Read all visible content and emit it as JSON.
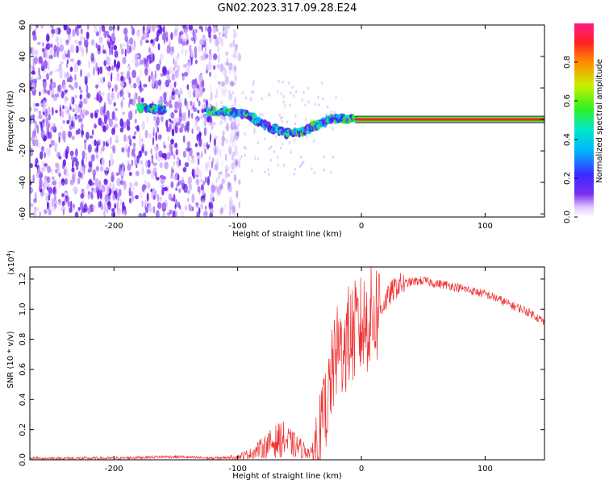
{
  "title": "GN02.2023.317.09.28.E24",
  "chart_data": [
    {
      "type": "heatmap",
      "xlabel": "Height of straight line (km)",
      "ylabel": "Frequency (Hz)",
      "xlim": [
        -268,
        148
      ],
      "ylim": [
        -62,
        60
      ],
      "xticks": [
        -200,
        -100,
        0,
        100
      ],
      "yticks": [
        -60,
        -40,
        -20,
        0,
        20,
        40,
        60
      ],
      "colorbar": {
        "label": "Normalized spectral amplitude",
        "range": [
          0,
          1
        ],
        "ticks": [
          "0.0",
          "0.2",
          "0.4",
          "0.6",
          "0.8"
        ],
        "colors": [
          "#ffffff",
          "#e0c8ff",
          "#7a2cf0",
          "#3a2cff",
          "#00b4ff",
          "#00e8c8",
          "#30f020",
          "#c8f000",
          "#ff8c00",
          "#ff2020",
          "#ff1a8c"
        ]
      },
      "features": {
        "noise_region_x": [
          -268,
          -105
        ],
        "carrier_line_x": [
          -5,
          148
        ],
        "carrier_freq_hz": 0,
        "signal_track": [
          {
            "x": -180,
            "y": 7
          },
          {
            "x": -170,
            "y": 7
          },
          {
            "x": -160,
            "y": 6
          },
          {
            "x": -125,
            "y": 5
          },
          {
            "x": -110,
            "y": 5
          },
          {
            "x": -100,
            "y": 4
          },
          {
            "x": -90,
            "y": 2
          },
          {
            "x": -80,
            "y": -3
          },
          {
            "x": -70,
            "y": -6
          },
          {
            "x": -60,
            "y": -9
          },
          {
            "x": -50,
            "y": -8
          },
          {
            "x": -42,
            "y": -6
          },
          {
            "x": -35,
            "y": -3
          },
          {
            "x": -25,
            "y": 0
          },
          {
            "x": -15,
            "y": 0
          },
          {
            "x": -5,
            "y": 1
          }
        ]
      }
    },
    {
      "type": "line",
      "xlabel": "Height of straight line (km)",
      "ylabel": "SNR (10 * v/v)",
      "scale_label": "(x10",
      "scale_exponent": "4",
      "scale_suffix": ")",
      "xlim": [
        -268,
        148
      ],
      "ylim": [
        0,
        1.28
      ],
      "xticks": [
        -200,
        -100,
        0,
        100
      ],
      "yticks": [
        "0.0",
        "0.2",
        "0.4",
        "0.6",
        "0.8",
        "1.0",
        "1.2"
      ],
      "color": "#ee3333",
      "series": [
        {
          "x": [
            -268,
            -240,
            -200,
            -160,
            -150,
            -120,
            -100,
            -90,
            -80,
            -70,
            -64,
            -60,
            -50,
            -40,
            -35,
            -30,
            -26,
            -23,
            -20,
            -15,
            -10,
            -5,
            0,
            5,
            10,
            15,
            20,
            25,
            30,
            40,
            50,
            60,
            70,
            80,
            90,
            100,
            110,
            120,
            130,
            140,
            148
          ],
          "values": [
            0.01,
            0.01,
            0.01,
            0.02,
            0.02,
            0.01,
            0.02,
            0.04,
            0.08,
            0.12,
            0.14,
            0.12,
            0.08,
            0.04,
            0.15,
            0.3,
            0.45,
            0.6,
            0.7,
            0.75,
            0.82,
            0.85,
            0.88,
            0.92,
            0.96,
            1.0,
            1.06,
            1.12,
            1.16,
            1.18,
            1.19,
            1.17,
            1.16,
            1.14,
            1.12,
            1.1,
            1.07,
            1.03,
            1.0,
            0.96,
            0.91
          ]
        }
      ]
    }
  ]
}
